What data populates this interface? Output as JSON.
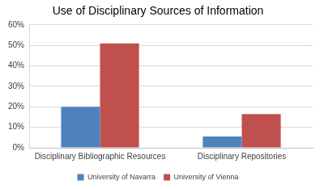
{
  "chart_data": {
    "type": "bar",
    "title": "Use of Disciplinary Sources of Information",
    "categories": [
      "Disciplinary Bibliographic Resources",
      "Disciplinary Repositories"
    ],
    "series": [
      {
        "name": "University of Navarra",
        "color": "#4f81bd",
        "values": [
          20,
          5.5
        ]
      },
      {
        "name": "University of Vienna",
        "color": "#c0504d",
        "values": [
          51,
          16.5
        ]
      }
    ],
    "ylim": [
      0,
      60
    ],
    "yticks": [
      {
        "value": 0,
        "label": "0%"
      },
      {
        "value": 10,
        "label": "10%"
      },
      {
        "value": 20,
        "label": "20%"
      },
      {
        "value": 30,
        "label": "30%"
      },
      {
        "value": 40,
        "label": "40%"
      },
      {
        "value": 50,
        "label": "50%"
      },
      {
        "value": 60,
        "label": "60%"
      }
    ],
    "grid": true,
    "legend": "bottom"
  }
}
